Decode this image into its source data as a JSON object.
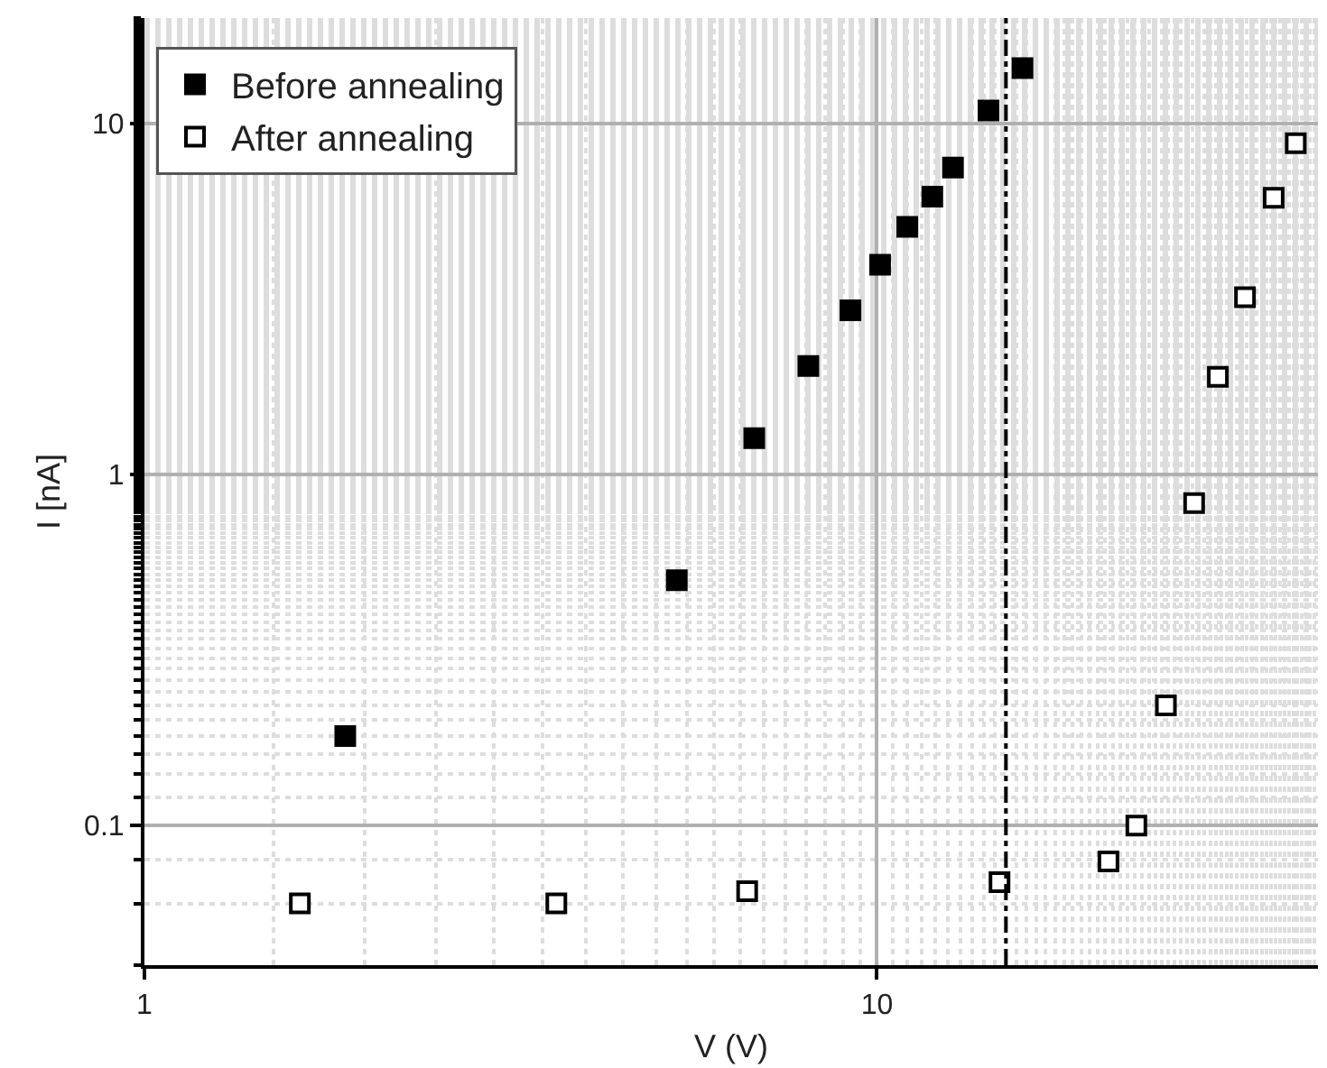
{
  "chart_data": {
    "type": "scatter",
    "xlabel": "V (V)",
    "ylabel": "I [nA]",
    "log": "xy",
    "xlim": [
      1,
      40
    ],
    "ylim": [
      0.04,
      20
    ],
    "xticks": [
      1,
      10
    ],
    "yticks": [
      0.1,
      1,
      10
    ],
    "grid": true,
    "legend": "top left",
    "marker": "square",
    "series": [
      {
        "name": "Before annealing",
        "color": "#000000",
        "x": [
          1.88,
          5.33,
          6.8,
          8.06,
          9.2,
          10.1,
          11.0,
          11.9,
          12.7,
          14.2,
          15.8
        ],
        "values": [
          0.18,
          0.5,
          1.27,
          2.04,
          2.94,
          3.96,
          5.08,
          6.2,
          7.5,
          10.9,
          14.4
        ]
      },
      {
        "name": "After annealing",
        "color": "#000000",
        "x": [
          1.63,
          3.65,
          6.65,
          14.7,
          20.7,
          22.6,
          24.8,
          27.1,
          29.2,
          31.8,
          34.8,
          37.3
        ],
        "values": [
          0.06,
          0.06,
          0.065,
          0.069,
          0.079,
          0.1,
          0.22,
          0.83,
          1.9,
          3.2,
          6.15,
          8.8
        ]
      }
    ],
    "ref_lines": [
      {
        "axis": "x",
        "value": 15.0,
        "line_style": "dashdot",
        "color": "#000000"
      }
    ]
  }
}
